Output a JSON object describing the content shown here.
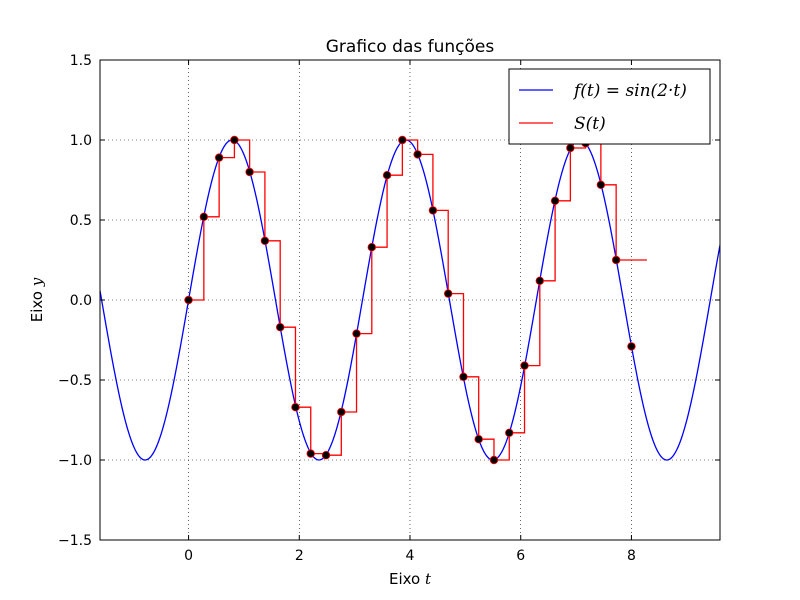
{
  "chart_data": {
    "type": "line",
    "title": "Grafico das funções",
    "xlabel_prefix": "Eixo ",
    "xlabel_var": "t",
    "ylabel_prefix": "Eixo ",
    "ylabel_var": "y",
    "xlim": [
      -1.6,
      9.6
    ],
    "ylim": [
      -1.5,
      1.5
    ],
    "xticks": [
      0,
      2,
      4,
      6,
      8
    ],
    "xtick_labels": [
      "0",
      "2",
      "4",
      "6",
      "8"
    ],
    "yticks": [
      -1.5,
      -1.0,
      -0.5,
      0.0,
      0.5,
      1.0,
      1.5
    ],
    "ytick_labels": [
      "−1.5",
      "−1.0",
      "−0.5",
      "0.0",
      "0.5",
      "1.0",
      "1.5"
    ],
    "grid": true,
    "legend_position": "top-right",
    "series": [
      {
        "name": "f(t) = sin(2·t)",
        "kind": "curve",
        "function": "sin(2t)",
        "color": "#0000ff"
      },
      {
        "name": "S(t)",
        "kind": "step",
        "color": "#ff0000",
        "x": [
          0,
          0.276,
          0.552,
          0.828,
          1.103,
          1.379,
          1.655,
          1.931,
          2.207,
          2.483,
          2.759,
          3.034,
          3.31,
          3.586,
          3.862,
          4.138,
          4.414,
          4.69,
          4.966,
          5.241,
          5.517,
          5.793,
          6.069,
          6.345,
          6.621,
          6.897,
          7.172,
          7.448,
          7.724,
          8.0
        ],
        "values": [
          0.0,
          0.52,
          0.89,
          1.0,
          0.8,
          0.37,
          -0.17,
          -0.67,
          -0.96,
          -0.97,
          -0.7,
          -0.21,
          0.33,
          0.78,
          1.0,
          0.91,
          0.56,
          0.04,
          -0.48,
          -0.87,
          -1.0,
          -0.83,
          -0.41,
          0.12,
          0.62,
          0.95,
          0.98,
          0.72,
          0.25,
          -0.29
        ],
        "end_x": 8.0
      },
      {
        "name": "",
        "kind": "markers",
        "color": "#000000",
        "edge_color": "#ff0000",
        "x": [
          0,
          0.276,
          0.552,
          0.828,
          1.103,
          1.379,
          1.655,
          1.931,
          2.207,
          2.483,
          2.759,
          3.034,
          3.31,
          3.586,
          3.862,
          4.138,
          4.414,
          4.69,
          4.966,
          5.241,
          5.517,
          5.793,
          6.069,
          6.345,
          6.621,
          6.897,
          7.172,
          7.448,
          7.724,
          8.0
        ],
        "values": [
          0.0,
          0.52,
          0.89,
          1.0,
          0.8,
          0.37,
          -0.17,
          -0.67,
          -0.96,
          -0.97,
          -0.7,
          -0.21,
          0.33,
          0.78,
          1.0,
          0.91,
          0.56,
          0.04,
          -0.48,
          -0.87,
          -1.0,
          -0.83,
          -0.41,
          0.12,
          0.62,
          0.95,
          0.98,
          0.72,
          0.25,
          -0.29
        ]
      }
    ],
    "legend": [
      {
        "label": "f(t) = sin(2·t)",
        "color": "#0000ff"
      },
      {
        "label": "S(t)",
        "color": "#ff0000"
      }
    ]
  }
}
